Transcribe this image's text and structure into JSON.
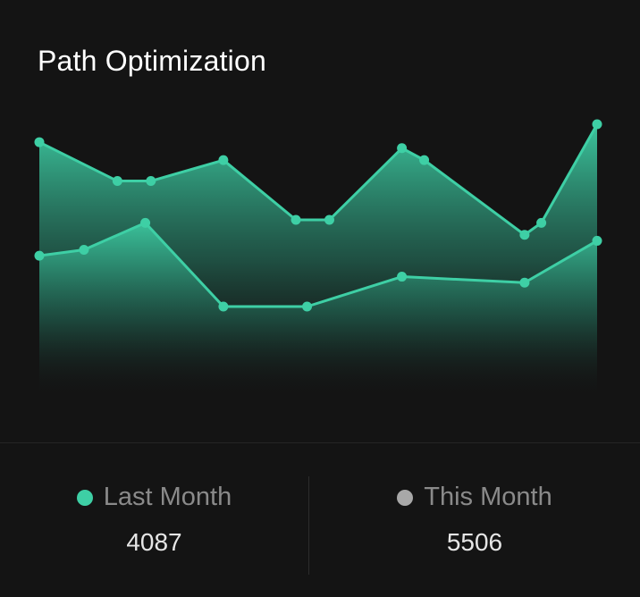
{
  "title": "Path Optimization",
  "colors": {
    "background": "#141414",
    "line": "#3ecfa5",
    "dot_last_month": "#3ecfa5",
    "dot_this_month": "#a8a8a8"
  },
  "legend": [
    {
      "label": "Last Month",
      "value": "4087",
      "color": "#3ecfa5"
    },
    {
      "label": "This Month",
      "value": "5506",
      "color": "#a8a8a8"
    }
  ],
  "chart_data": {
    "type": "area",
    "title": "Path Optimization",
    "grid": false,
    "ylim": [
      0,
      100
    ],
    "series": [
      {
        "name": "This Month",
        "x": [
          0,
          1.4,
          2,
          3.3,
          4.6,
          5.2,
          6.5,
          6.9,
          8.7,
          9.0,
          10
        ],
        "values": [
          88,
          75,
          75,
          82,
          62,
          62,
          86,
          82,
          57,
          61,
          94
        ]
      },
      {
        "name": "Last Month",
        "x": [
          0,
          0.8,
          1.9,
          3.3,
          4.8,
          6.5,
          8.7,
          10
        ],
        "values": [
          50,
          52,
          61,
          33,
          33,
          43,
          41,
          55
        ]
      }
    ]
  }
}
